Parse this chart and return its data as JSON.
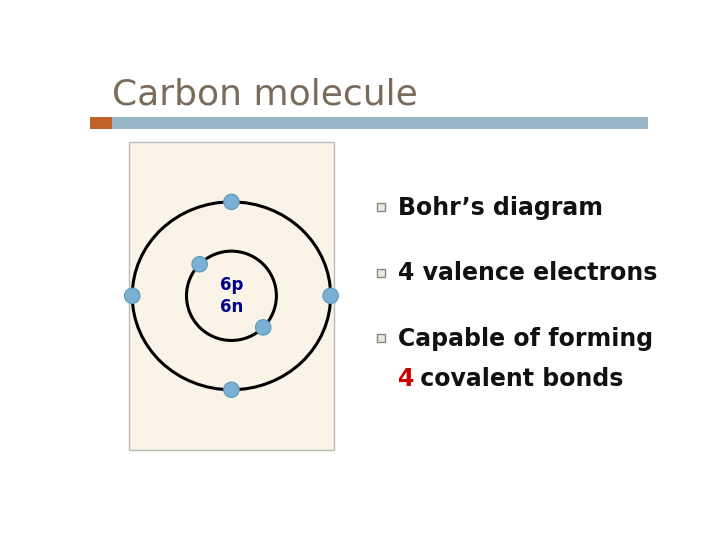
{
  "title": "Carbon molecule",
  "title_color": "#7B6B5B",
  "title_fontsize": 26,
  "bg_color": "#FFFFFF",
  "header_bar_color": "#9BB5C8",
  "header_accent_color": "#C0622A",
  "diagram_bg": "#FAF3E8",
  "nucleus_label": "6p\n6n",
  "nucleus_label_color": "#00008B",
  "nucleus_fontsize": 12,
  "electron_color": "#7BAFD4",
  "electron_edge_color": "#5A9AC0",
  "text_items": [
    {
      "text": "Bohr’s diagram",
      "fontsize": 17,
      "color": "#111111"
    },
    {
      "text": "4 valence electrons",
      "fontsize": 17,
      "color": "#111111"
    },
    {
      "text": "Capable of forming",
      "fontsize": 17,
      "color": "#111111"
    },
    {
      "text2_red": "4",
      "text2_rest": " covalent bonds",
      "fontsize": 17,
      "color_red": "#CC0000",
      "color_rest": "#111111"
    }
  ]
}
